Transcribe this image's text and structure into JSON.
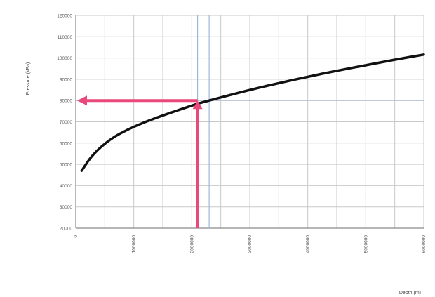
{
  "chart_data": {
    "type": "line",
    "title": "",
    "ylabel": "Pressure (kPa)",
    "xlabel": "Depth (m)",
    "y_ticks": [
      "120000",
      "110000",
      "100000",
      "90000",
      "80000",
      "70000",
      "60000",
      "50000",
      "40000",
      "30000",
      "20000"
    ],
    "x_ticks": [
      "0",
      "1000000",
      "2000000",
      "3000000",
      "4000000",
      "5000000",
      "6000000"
    ],
    "xlim": [
      0,
      6000000
    ],
    "ylim": [
      20000,
      120000
    ],
    "grid": true,
    "series": [
      {
        "color": "#111111",
        "points": [
          [
            100000,
            47000
          ],
          [
            300000,
            55000
          ],
          [
            600000,
            62000
          ],
          [
            900000,
            66500
          ],
          [
            1200000,
            70000
          ],
          [
            1500000,
            73000
          ],
          [
            1800000,
            75800
          ],
          [
            2100000,
            78500
          ],
          [
            2100000,
            78500
          ],
          [
            2500000,
            81500
          ],
          [
            3000000,
            85000
          ],
          [
            3500000,
            88200
          ],
          [
            4000000,
            91200
          ],
          [
            4500000,
            94000
          ],
          [
            5000000,
            96600
          ],
          [
            5500000,
            99200
          ],
          [
            6000000,
            101600
          ]
        ]
      }
    ],
    "annotations": [
      {
        "type": "vertical-arrow",
        "color": "#e8497a",
        "x": 2100000,
        "y_from": 20000,
        "y_to": 80000
      },
      {
        "type": "horizontal-arrow",
        "color": "#e8497a",
        "y": 80000,
        "x_from": 2100000,
        "x_to": 0
      }
    ],
    "highlight_lines": {
      "color": "#9fb6dc",
      "x": [
        2100000,
        2300000
      ],
      "y": [
        80000
      ]
    }
  }
}
